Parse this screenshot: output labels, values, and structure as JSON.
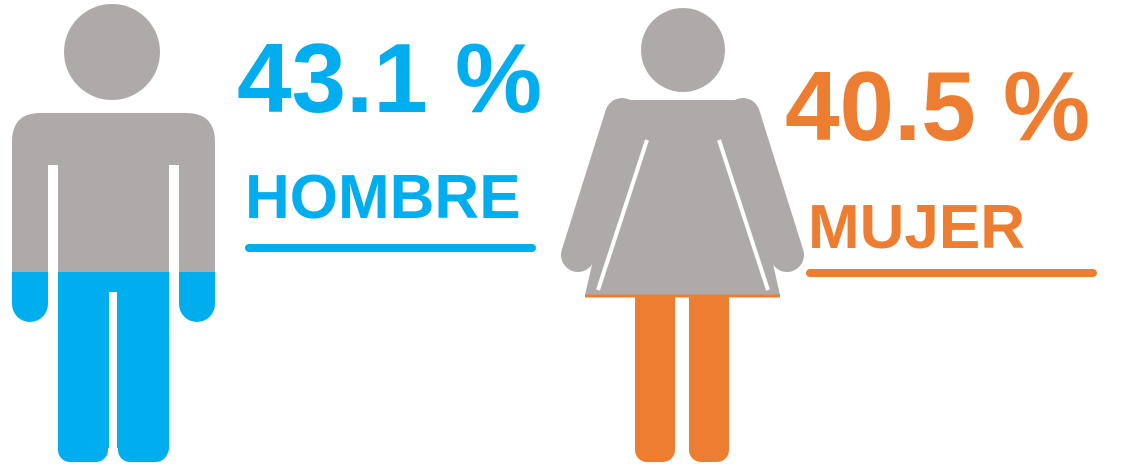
{
  "items": [
    {
      "value": "43.1 %",
      "label": "HOMBRE"
    },
    {
      "value": "40.5 %",
      "label": "MUJER"
    }
  ]
}
